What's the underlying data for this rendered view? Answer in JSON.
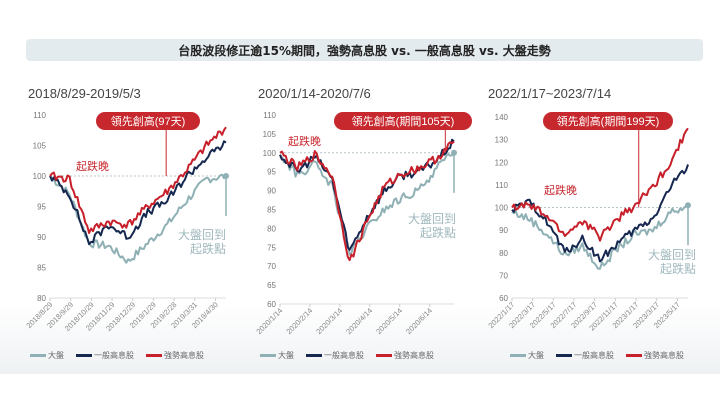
{
  "title": "台股波段修正逾15%期間，強勢高息股 vs. 一般高息股 vs. 大盤走勢",
  "colors": {
    "market": "#8fb0b4",
    "general": "#16284f",
    "strong": "#c7202a",
    "title_bg": "#e4ebee",
    "callout_bg": "#c7282e"
  },
  "legend": {
    "market": "大盤",
    "general": "一般高息股",
    "strong": "強勢高息股"
  },
  "charts": [
    {
      "period": "2018/8/29-2019/5/3",
      "callout": "領先創高(97天)",
      "late_label": "起跌晚",
      "recover_label_line1": "大盤回到",
      "recover_label_line2": "起跌點"
    },
    {
      "period": "2020/1/14-2020/7/6",
      "callout": "領先創高(期間105天)",
      "late_label": "起跌晚",
      "recover_label_line1": "大盤回到",
      "recover_label_line2": "起跌點"
    },
    {
      "period": "2022/1/17~2023/7/14",
      "callout": "領先創高(期間199天)",
      "late_label": "起跌晚",
      "recover_label_line1": "大盤回到",
      "recover_label_line2": "起跌點"
    }
  ],
  "chart_data": [
    {
      "type": "line",
      "title": "2018/8/29-2019/5/3",
      "xlabel": "",
      "ylabel": "",
      "ylim": [
        80,
        110
      ],
      "yticks": [
        80,
        85,
        90,
        95,
        100,
        105,
        110
      ],
      "categories": [
        "2018/8/29",
        "2018/9/29",
        "2018/10/29",
        "2018/11/29",
        "2018/12/29",
        "2019/1/29",
        "2019/2/28",
        "2019/3/31",
        "2019/4/30"
      ],
      "reference_line": 100,
      "annotations": [
        "領先創高(97天)",
        "起跌晚",
        "大盤回到起跌點"
      ],
      "legend_position": "bottom",
      "series": [
        {
          "name": "大盤",
          "values": [
            100,
            97,
            89,
            88.5,
            86,
            89,
            92,
            96,
            99.5,
            100
          ]
        },
        {
          "name": "一般高息股",
          "values": [
            100,
            97,
            89,
            92,
            90,
            94,
            96,
            100,
            103,
            105.5
          ]
        },
        {
          "name": "強勢高息股",
          "values": [
            100,
            99.5,
            91,
            92.5,
            92,
            95,
            97.5,
            101,
            105,
            108
          ]
        }
      ]
    },
    {
      "type": "line",
      "title": "2020/1/14-2020/7/6",
      "xlabel": "",
      "ylabel": "",
      "ylim": [
        60,
        110
      ],
      "yticks": [
        60,
        65,
        70,
        75,
        80,
        85,
        90,
        95,
        100,
        105,
        110
      ],
      "categories": [
        "2020/1/14",
        "2020/2/14",
        "2020/3/14",
        "2020/4/14",
        "2020/5/14",
        "2020/6/14"
      ],
      "reference_line": 100,
      "annotations": [
        "領先創高(期間105天)",
        "起跌晚",
        "大盤回到起跌點"
      ],
      "legend_position": "bottom",
      "series": [
        {
          "name": "大盤",
          "values": [
            99.5,
            94,
            97,
            91,
            73,
            80,
            85,
            88,
            90,
            96,
            100
          ]
        },
        {
          "name": "一般高息股",
          "values": [
            99.5,
            95,
            99,
            93,
            74,
            83,
            90,
            94,
            95,
            98,
            103
          ]
        },
        {
          "name": "強勢高息股",
          "values": [
            100,
            96,
            99.5,
            94,
            71,
            82,
            91,
            94.5,
            96,
            98.5,
            103
          ]
        }
      ]
    },
    {
      "type": "line",
      "title": "2022/1/17~2023/7/14",
      "xlabel": "",
      "ylabel": "",
      "ylim": [
        60,
        140
      ],
      "yticks": [
        60,
        70,
        80,
        90,
        100,
        110,
        120,
        130,
        140
      ],
      "categories": [
        "2022/1/17",
        "2022/3/17",
        "2022/5/17",
        "2022/7/17",
        "2022/9/17",
        "2022/11/17",
        "2023/1/17",
        "2023/3/17",
        "2023/5/17"
      ],
      "reference_line": 100,
      "annotations": [
        "領先創高(期間199天)",
        "起跌晚",
        "大盤回到起跌點"
      ],
      "legend_position": "bottom",
      "series": [
        {
          "name": "大盤",
          "values": [
            98,
            95,
            88,
            79,
            83,
            73,
            82,
            88,
            90,
            98,
            101
          ]
        },
        {
          "name": "一般高息股",
          "values": [
            99,
            102,
            94,
            80,
            86,
            77,
            84,
            90,
            95,
            109,
            119
          ]
        },
        {
          "name": "強勢高息股",
          "values": [
            100,
            101,
            96,
            88,
            94,
            87,
            95,
            101,
            109,
            120,
            135
          ]
        }
      ]
    }
  ]
}
